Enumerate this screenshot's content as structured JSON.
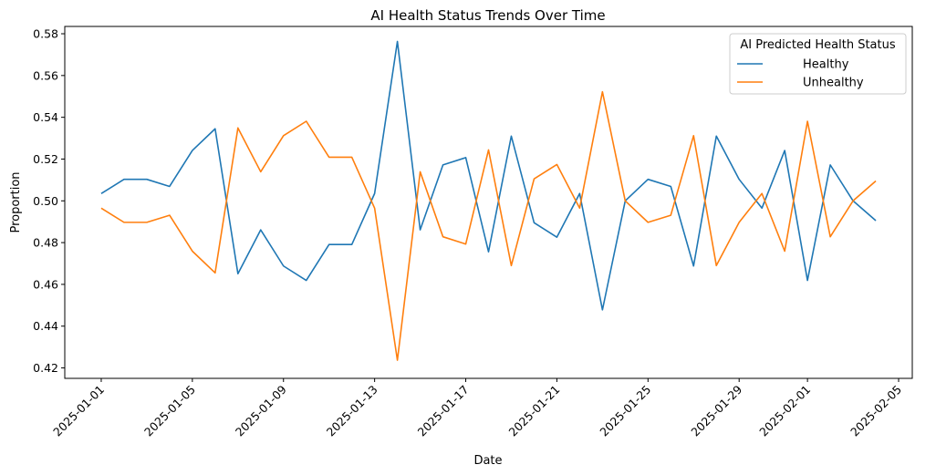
{
  "chart_data": {
    "type": "line",
    "title": "AI Health Status Trends Over Time",
    "xlabel": "Date",
    "ylabel": "Proportion",
    "x": [
      "2025-01-01",
      "2025-01-02",
      "2025-01-03",
      "2025-01-04",
      "2025-01-05",
      "2025-01-06",
      "2025-01-07",
      "2025-01-08",
      "2025-01-09",
      "2025-01-10",
      "2025-01-11",
      "2025-01-12",
      "2025-01-13",
      "2025-01-14",
      "2025-01-15",
      "2025-01-16",
      "2025-01-17",
      "2025-01-18",
      "2025-01-19",
      "2025-01-20",
      "2025-01-21",
      "2025-01-22",
      "2025-01-23",
      "2025-01-24",
      "2025-01-25",
      "2025-01-26",
      "2025-01-27",
      "2025-01-28",
      "2025-01-29",
      "2025-01-30",
      "2025-01-31",
      "2025-02-01",
      "2025-02-02",
      "2025-02-03",
      "2025-02-04"
    ],
    "xticks": [
      "2025-01-01",
      "2025-01-05",
      "2025-01-09",
      "2025-01-13",
      "2025-01-17",
      "2025-01-21",
      "2025-01-25",
      "2025-01-29",
      "2025-02-01",
      "2025-02-05"
    ],
    "yticks": [
      "0.42",
      "0.44",
      "0.46",
      "0.48",
      "0.50",
      "0.52",
      "0.54",
      "0.56",
      "0.58"
    ],
    "ylim": [
      0.415,
      0.5835
    ],
    "xlim": [
      "2024-12-30T09:36",
      "2025-02-05T14:24"
    ],
    "legend": {
      "title": "AI Predicted Health Status",
      "position": "top-right"
    },
    "series": [
      {
        "name": "Healthy",
        "color": "#1f77b4",
        "values": [
          0.5035,
          0.5103,
          0.5103,
          0.5069,
          0.5241,
          0.5345,
          0.4651,
          0.4861,
          0.4688,
          0.4619,
          0.4791,
          0.4791,
          0.5035,
          0.5763,
          0.4861,
          0.5172,
          0.5207,
          0.4756,
          0.531,
          0.4895,
          0.4826,
          0.5035,
          0.4478,
          0.5,
          0.5103,
          0.5069,
          0.4688,
          0.531,
          0.5103,
          0.4965,
          0.5241,
          0.4619,
          0.5172,
          0.5,
          0.4905
        ]
      },
      {
        "name": "Unhealthy",
        "color": "#ff7f0e",
        "values": [
          0.4965,
          0.4897,
          0.4897,
          0.4931,
          0.4759,
          0.4655,
          0.5349,
          0.5139,
          0.5312,
          0.5381,
          0.5209,
          0.5209,
          0.4965,
          0.4237,
          0.5139,
          0.4828,
          0.4793,
          0.5244,
          0.469,
          0.5105,
          0.5174,
          0.4965,
          0.5522,
          0.5,
          0.4897,
          0.4931,
          0.5312,
          0.469,
          0.4897,
          0.5035,
          0.4759,
          0.5381,
          0.4828,
          0.5,
          0.5095
        ]
      }
    ],
    "grid": false
  }
}
